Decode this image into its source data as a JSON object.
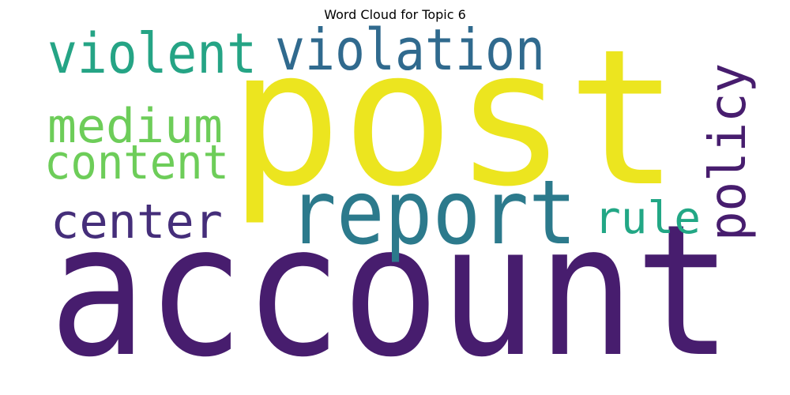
{
  "chart_data": {
    "type": "wordcloud",
    "title": "Word Cloud for Topic 6",
    "words": [
      {
        "text": "post",
        "color": "#ece51f"
      },
      {
        "text": "account",
        "color": "#471d6e"
      },
      {
        "text": "report",
        "color": "#2c7a8c"
      },
      {
        "text": "violation",
        "color": "#306a8e"
      },
      {
        "text": "violent",
        "color": "#25a485"
      },
      {
        "text": "policy",
        "color": "#471d6e"
      },
      {
        "text": "medium",
        "color": "#6dcd59"
      },
      {
        "text": "content",
        "color": "#6dcd59"
      },
      {
        "text": "center",
        "color": "#452e7a"
      },
      {
        "text": "rule",
        "color": "#22a785"
      }
    ]
  }
}
